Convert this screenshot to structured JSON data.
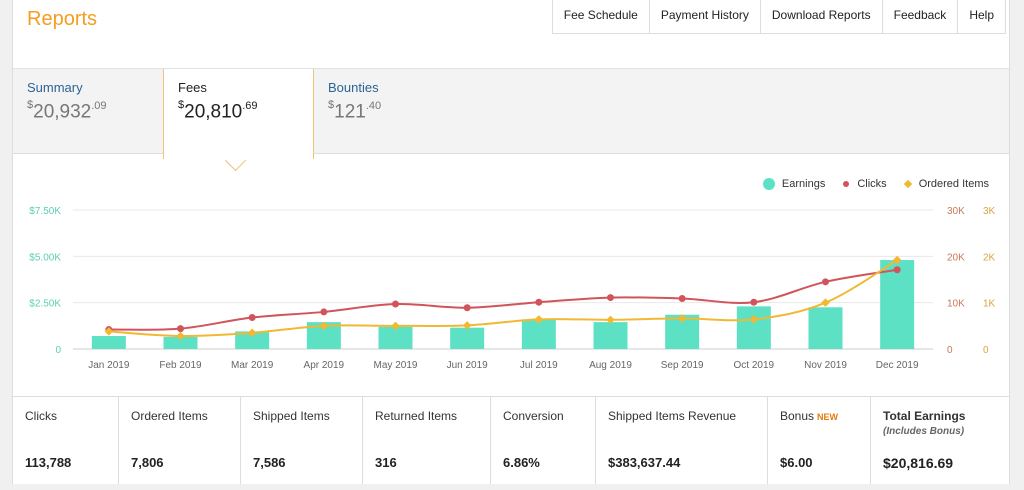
{
  "header": {
    "title": "Reports",
    "nav": [
      "Fee Schedule",
      "Payment History",
      "Download Reports",
      "Feedback",
      "Help"
    ]
  },
  "tabs": [
    {
      "label": "Summary",
      "dollar": "$",
      "amount": "20,932",
      "cents": ".09"
    },
    {
      "label": "Fees",
      "dollar": "$",
      "amount": "20,810",
      "cents": ".69"
    },
    {
      "label": "Bounties",
      "dollar": "$",
      "amount": "121",
      "cents": ".40"
    }
  ],
  "legend": [
    "Earnings",
    "Clicks",
    "Ordered Items"
  ],
  "colors": {
    "earnings": "#5ce1c4",
    "clicks": "#d1545b",
    "ordered": "#f2b832",
    "accent": "#f79c1e",
    "link": "#2a6496"
  },
  "chart_data": {
    "type": "bar+line",
    "categories": [
      "Jan 2019",
      "Feb 2019",
      "Mar 2019",
      "Apr 2019",
      "May 2019",
      "Jun 2019",
      "Jul 2019",
      "Aug 2019",
      "Sep 2019",
      "Oct 2019",
      "Nov 2019",
      "Dec 2019"
    ],
    "series": [
      {
        "name": "Earnings",
        "type": "bar",
        "axis": "left",
        "values": [
          700,
          650,
          950,
          1450,
          1200,
          1150,
          1600,
          1450,
          1850,
          2300,
          2250,
          4800
        ]
      },
      {
        "name": "Clicks",
        "type": "line",
        "axis": "right1",
        "values": [
          4200,
          4400,
          6800,
          8000,
          9700,
          8900,
          10100,
          11100,
          10900,
          10100,
          14500,
          17100
        ]
      },
      {
        "name": "Ordered Items",
        "type": "line",
        "axis": "right2",
        "values": [
          380,
          280,
          350,
          500,
          500,
          510,
          640,
          630,
          660,
          640,
          1000,
          1920
        ]
      }
    ],
    "left_axis": {
      "ticks": [
        "$7.50K",
        "$5.00K",
        "$2.50K",
        "0"
      ],
      "ylim": [
        0,
        7500
      ]
    },
    "right1_axis": {
      "ticks": [
        "30K",
        "20K",
        "10K",
        "0"
      ],
      "ylim": [
        0,
        30000
      ]
    },
    "right2_axis": {
      "ticks": [
        "3K",
        "2K",
        "1K",
        "0"
      ],
      "ylim": [
        0,
        3000
      ]
    }
  },
  "stats": [
    {
      "label": "Clicks",
      "value": "113,788"
    },
    {
      "label": "Ordered Items",
      "value": "7,806"
    },
    {
      "label": "Shipped Items",
      "value": "7,586"
    },
    {
      "label": "Returned Items",
      "value": "316"
    },
    {
      "label": "Conversion",
      "value": "6.86%"
    },
    {
      "label": "Shipped Items Revenue",
      "value": "$383,637.44"
    },
    {
      "label": "Bonus",
      "badge": "NEW",
      "value": "$6.00"
    },
    {
      "label": "Total Earnings",
      "sub": "(Includes Bonus)",
      "value": "$20,816.69"
    }
  ]
}
